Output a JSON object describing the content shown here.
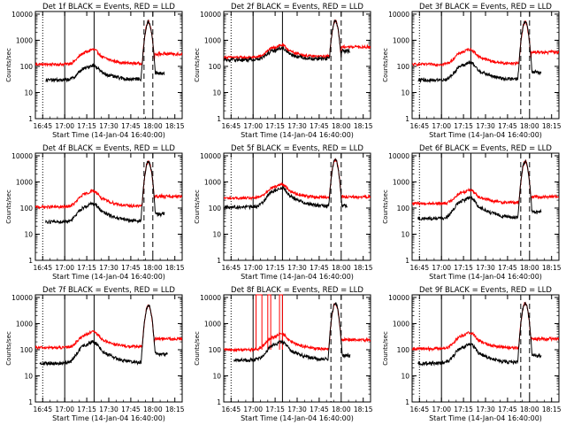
{
  "figure": {
    "x_ticks": [
      "16:45",
      "17:00",
      "17:15",
      "17:30",
      "17:45",
      "18:00",
      "18:15"
    ],
    "y_ticks": [
      "1",
      "10",
      "100",
      "1000",
      "10000"
    ],
    "ylabel": "Counts/sec",
    "xlabel": "Start Time (14-Jan-04 16:40:00)",
    "colors": {
      "events": "#000000",
      "lld": "#ff0000"
    }
  },
  "chart_data": [
    {
      "type": "line",
      "title": "Det 1f BLACK = Events, RED = LLD",
      "xlabel": "Start Time (14-Jan-04 16:40:00)",
      "ylabel": "Counts/sec",
      "xlim_min": [
        0,
        100
      ],
      "ylim_log10": [
        0,
        4.1
      ],
      "solid_markers_min": [
        20,
        40
      ],
      "dotted_markers_min": [
        5
      ],
      "dashed_markers_min": [
        74,
        80
      ],
      "events_start": 7,
      "events_end": 88,
      "events_base": 30,
      "lld_base": 120,
      "slow_peak": {
        "t": 39,
        "events": 110,
        "lld": 440
      },
      "flare": {
        "t": 77,
        "peak": 5000
      },
      "tail": {
        "events": 55,
        "lld": 300
      },
      "spikes": []
    },
    {
      "type": "line",
      "title": "Det 2f BLACK = Events, RED = LLD",
      "xlabel": "Start Time (14-Jan-04 16:40:00)",
      "ylabel": "Counts/sec",
      "xlim_min": [
        0,
        100
      ],
      "ylim_log10": [
        0,
        4.1
      ],
      "solid_markers_min": [
        20,
        40
      ],
      "dotted_markers_min": [
        5
      ],
      "dashed_markers_min": [
        73,
        80
      ],
      "events_start": 0,
      "events_end": 86,
      "events_base": 180,
      "lld_base": 220,
      "slow_peak": {
        "t": 39,
        "events": 500,
        "lld": 650
      },
      "flare": {
        "t": 76,
        "peak": 5500
      },
      "tail": {
        "events": 400,
        "lld": 550
      },
      "spikes": []
    },
    {
      "type": "line",
      "title": "Det 3f BLACK = Events, RED = LLD",
      "xlabel": "Start Time (14-Jan-04 16:40:00)",
      "ylabel": "Counts/sec",
      "xlim_min": [
        0,
        100
      ],
      "ylim_log10": [
        0,
        4.1
      ],
      "solid_markers_min": [
        20,
        40
      ],
      "dotted_markers_min": [
        5
      ],
      "dashed_markers_min": [
        74,
        80
      ],
      "events_start": 4,
      "events_end": 88,
      "events_base": 30,
      "lld_base": 120,
      "slow_peak": {
        "t": 39,
        "events": 140,
        "lld": 450
      },
      "flare": {
        "t": 77,
        "peak": 5000
      },
      "tail": {
        "events": 60,
        "lld": 350
      },
      "spikes": []
    },
    {
      "type": "line",
      "title": "Det 4f BLACK = Events, RED = LLD",
      "xlabel": "Start Time (14-Jan-04 16:40:00)",
      "ylabel": "Counts/sec",
      "xlim_min": [
        0,
        100
      ],
      "ylim_log10": [
        0,
        4.1
      ],
      "solid_markers_min": [
        20,
        40
      ],
      "dotted_markers_min": [
        5
      ],
      "dashed_markers_min": [
        74,
        80
      ],
      "events_start": 7,
      "events_end": 88,
      "events_base": 30,
      "lld_base": 110,
      "slow_peak": {
        "t": 39,
        "events": 150,
        "lld": 450
      },
      "flare": {
        "t": 77,
        "peak": 6000
      },
      "tail": {
        "events": 60,
        "lld": 280
      },
      "spikes": []
    },
    {
      "type": "line",
      "title": "Det 5f BLACK = Events, RED = LLD",
      "xlabel": "Start Time (14-Jan-04 16:40:00)",
      "ylabel": "Counts/sec",
      "xlim_min": [
        0,
        100
      ],
      "ylim_log10": [
        0,
        4.1
      ],
      "solid_markers_min": [
        20,
        40
      ],
      "dotted_markers_min": [
        5
      ],
      "dashed_markers_min": [
        73,
        80
      ],
      "events_start": 0,
      "events_end": 84,
      "events_base": 110,
      "lld_base": 240,
      "slow_peak": {
        "t": 39,
        "events": 600,
        "lld": 800
      },
      "flare": {
        "t": 76,
        "peak": 7000
      },
      "tail": {
        "events": 50,
        "lld": 270
      },
      "spikes": []
    },
    {
      "type": "line",
      "title": "Det 6f BLACK = Events, RED = LLD",
      "xlabel": "Start Time (14-Jan-04 16:40:00)",
      "ylabel": "Counts/sec",
      "xlim_min": [
        0,
        100
      ],
      "ylim_log10": [
        0,
        4.1
      ],
      "solid_markers_min": [
        20,
        40
      ],
      "dotted_markers_min": [
        5
      ],
      "dashed_markers_min": [
        74,
        80
      ],
      "events_start": 4,
      "events_end": 88,
      "events_base": 40,
      "lld_base": 150,
      "slow_peak": {
        "t": 39,
        "events": 250,
        "lld": 500
      },
      "flare": {
        "t": 77,
        "peak": 6000
      },
      "tail": {
        "events": 70,
        "lld": 270
      },
      "spikes": []
    },
    {
      "type": "line",
      "title": "Det 7f BLACK = Events, RED = LLD",
      "xlabel": "Start Time (14-Jan-04 16:40:00)",
      "ylabel": "Counts/sec",
      "xlim_min": [
        0,
        100
      ],
      "ylim_log10": [
        0,
        4.1
      ],
      "solid_markers_min": [
        20,
        40
      ],
      "dotted_markers_min": [
        5
      ],
      "dashed_markers_min": [],
      "events_start": 3,
      "events_end": 90,
      "events_base": 30,
      "lld_base": 120,
      "slow_peak": {
        "t": 39,
        "events": 200,
        "lld": 480
      },
      "flare": {
        "t": 77,
        "peak": 5000
      },
      "tail": {
        "events": 70,
        "lld": 260
      },
      "spikes": []
    },
    {
      "type": "line",
      "title": "Det 8f BLACK = Events, RED = LLD",
      "xlabel": "Start Time (14-Jan-04 16:40:00)",
      "ylabel": "Counts/sec",
      "xlim_min": [
        0,
        100
      ],
      "ylim_log10": [
        0,
        4.1
      ],
      "solid_markers_min": [
        20,
        40
      ],
      "dotted_markers_min": [
        5
      ],
      "dashed_markers_min": [
        73,
        80
      ],
      "events_start": 7,
      "events_end": 86,
      "events_base": 40,
      "lld_base": 100,
      "slow_peak": {
        "t": 39,
        "events": 200,
        "lld": 400
      },
      "flare": {
        "t": 76,
        "peak": 6000
      },
      "tail": {
        "events": 60,
        "lld": 240
      },
      "spikes": [
        [
          22,
          26
        ],
        [
          30,
          32
        ],
        [
          38,
          40
        ]
      ]
    },
    {
      "type": "line",
      "title": "Det 9f BLACK = Events, RED = LLD",
      "xlabel": "Start Time (14-Jan-04 16:40:00)",
      "ylabel": "Counts/sec",
      "xlim_min": [
        0,
        100
      ],
      "ylim_log10": [
        0,
        4.1
      ],
      "solid_markers_min": [
        20,
        40
      ],
      "dotted_markers_min": [
        5
      ],
      "dashed_markers_min": [
        74,
        80
      ],
      "events_start": 4,
      "events_end": 88,
      "events_base": 30,
      "lld_base": 110,
      "slow_peak": {
        "t": 39,
        "events": 160,
        "lld": 450
      },
      "flare": {
        "t": 77,
        "peak": 6000
      },
      "tail": {
        "events": 60,
        "lld": 260
      },
      "spikes": []
    }
  ]
}
